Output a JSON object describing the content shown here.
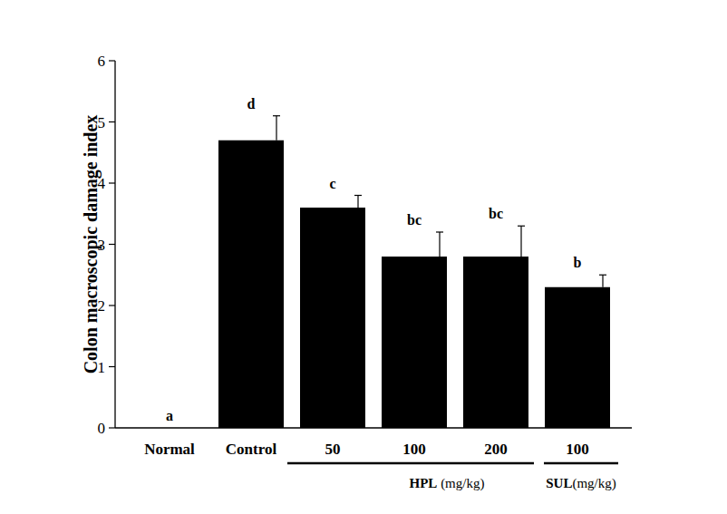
{
  "chart_data": {
    "type": "bar",
    "y_label": "Colon macroscopic damage index",
    "categories": [
      "Normal",
      "Control",
      "50",
      "100",
      "200",
      "100"
    ],
    "values": [
      0,
      4.7,
      3.6,
      2.8,
      2.8,
      2.3
    ],
    "errors": [
      0,
      0.4,
      0.2,
      0.4,
      0.5,
      0.2
    ],
    "annotations": [
      "a",
      "d",
      "c",
      "bc",
      "bc",
      "b"
    ],
    "x_groups": [
      {
        "label": "HPL (mg/kg)",
        "categories": [
          2,
          3,
          4
        ]
      },
      {
        "label": "SUL(mg/kg)",
        "categories": [
          5
        ]
      }
    ],
    "color": "#000000",
    "ylim": [
      0,
      6
    ],
    "yticks": [
      0,
      1,
      2,
      3,
      4,
      5,
      6
    ],
    "grid": false
  }
}
